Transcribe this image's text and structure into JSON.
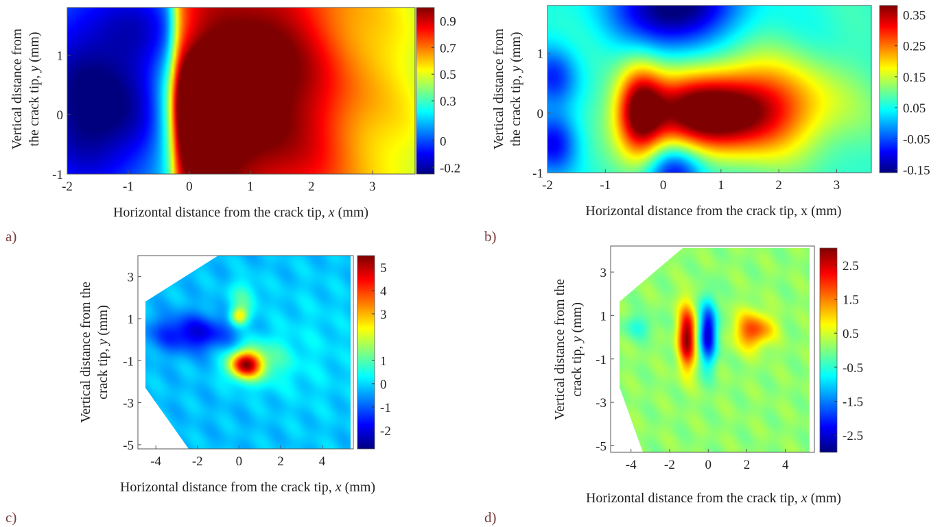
{
  "colormap": [
    "#00007f",
    "#0000ff",
    "#007fff",
    "#00ffff",
    "#7fff7f",
    "#ffff00",
    "#ff7f00",
    "#ff0000",
    "#7f0000"
  ],
  "chart_data": [
    {
      "panel": "a)",
      "type": "heatmap",
      "xlabel_pre": "Horizontal distance from the crack tip, ",
      "xlabel_var": "x",
      "xlabel_post": " (mm)",
      "ylabel_line1": "Vertical distance from",
      "ylabel_line1_var": "",
      "ylabel_line1_post": "",
      "ylabel_line2_pre": "the crack tip, ",
      "ylabel_line2_var": "y",
      "ylabel_line2_post": " (mm)",
      "xlim": [
        -2,
        3.7
      ],
      "ylim": [
        -1,
        1.8
      ],
      "xticks": [
        -2,
        -1,
        0,
        1,
        2,
        3
      ],
      "yticks": [
        -1,
        0,
        1
      ],
      "colorbar_ticks": [
        "0.9",
        "0.7",
        "0.5",
        "0.3",
        "0",
        "-0.2"
      ],
      "colorbar_range": [
        -0.25,
        1.0
      ],
      "field": [
        {
          "x": -1.4,
          "y": 0.0,
          "amp": -0.45,
          "sx": 0.9,
          "sy": 0.9
        },
        {
          "x": -1.0,
          "y": 1.5,
          "amp": -0.25,
          "sx": 0.9,
          "sy": 0.6
        },
        {
          "x": 0.1,
          "y": 0.0,
          "amp": 0.65,
          "sx": 0.35,
          "sy": 0.7
        },
        {
          "x": 0.8,
          "y": 0.5,
          "amp": 0.25,
          "sx": 0.9,
          "sy": 1.2
        },
        {
          "x": 2.0,
          "y": 0.3,
          "amp": 0.15,
          "sx": 1.2,
          "sy": 1.5
        }
      ],
      "field_base": 0.35,
      "field_step": {
        "x0": -0.25,
        "width": 0.25,
        "left": -0.2,
        "right": 0.45
      }
    },
    {
      "panel": "b)",
      "type": "heatmap",
      "xlabel_pre": "Horizontal distance from the crack tip, x (mm)",
      "xlabel_var": "",
      "xlabel_post": "",
      "ylabel_line1": "Vertical distance from",
      "ylabel_line1_var": "",
      "ylabel_line1_post": "",
      "ylabel_line2_pre": "the crack tip, ",
      "ylabel_line2_var": "y",
      "ylabel_line2_post": " (mm)",
      "xlim": [
        -2,
        3.6
      ],
      "ylim": [
        -1,
        1.8
      ],
      "xticks": [
        -2,
        -1,
        0,
        1,
        2,
        3
      ],
      "yticks": [
        -1,
        0,
        1
      ],
      "colorbar_ticks": [
        "0.35",
        "0.25",
        "0.15",
        "0.05",
        "-0.05",
        "-0.15"
      ],
      "colorbar_range": [
        -0.16,
        0.38
      ],
      "field": [
        {
          "x": -0.4,
          "y": 0.0,
          "amp": 0.28,
          "sx": 0.28,
          "sy": 0.55
        },
        {
          "x": 0.7,
          "y": 0.0,
          "amp": 0.3,
          "sx": 0.8,
          "sy": 0.45
        },
        {
          "x": 1.8,
          "y": 0.1,
          "amp": 0.18,
          "sx": 1.0,
          "sy": 0.6
        },
        {
          "x": 0.2,
          "y": 1.8,
          "amp": -0.25,
          "sx": 0.7,
          "sy": 0.5
        },
        {
          "x": 0.2,
          "y": -1.0,
          "amp": -0.18,
          "sx": 0.35,
          "sy": 0.35
        },
        {
          "x": -1.9,
          "y": -0.5,
          "amp": -0.15,
          "sx": 0.3,
          "sy": 0.35
        },
        {
          "x": -1.9,
          "y": 0.6,
          "amp": -0.12,
          "sx": 0.3,
          "sy": 0.35
        }
      ],
      "field_base": 0.06,
      "field_step": null
    },
    {
      "panel": "c)",
      "type": "heatmap",
      "xlabel_pre": "Horizontal distance from the crack tip, ",
      "xlabel_var": "x",
      "xlabel_post": " (mm)",
      "ylabel_line1": "Vertical distance from the",
      "ylabel_line1_var": "",
      "ylabel_line1_post": "",
      "ylabel_line2_pre": "crack tip, ",
      "ylabel_line2_var": "y",
      "ylabel_line2_post": " (mm)",
      "xlim": [
        -4.5,
        5.5
      ],
      "ylim": [
        -5.2,
        4.0
      ],
      "xticks": [
        -4,
        -2,
        0,
        2,
        4
      ],
      "yticks": [
        -5,
        -3,
        -1,
        1,
        3
      ],
      "colorbar_ticks": [
        "5",
        "4",
        "3",
        "1",
        "0",
        "-1",
        "-2"
      ],
      "colorbar_range": [
        -2.8,
        5.5
      ],
      "field": [
        {
          "x": -2.2,
          "y": 0.3,
          "amp": -1.8,
          "sx": 1.4,
          "sy": 0.6
        },
        {
          "x": 0.3,
          "y": -1.2,
          "amp": 4.6,
          "sx": 0.55,
          "sy": 0.45
        },
        {
          "x": 1.0,
          "y": -1.0,
          "amp": 1.2,
          "sx": 1.0,
          "sy": 0.8
        },
        {
          "x": 0.0,
          "y": 1.1,
          "amp": 2.6,
          "sx": 0.3,
          "sy": 0.3
        },
        {
          "x": 0.2,
          "y": 2.0,
          "amp": 1.0,
          "sx": 0.5,
          "sy": 0.6
        },
        {
          "x": 3.5,
          "y": -0.5,
          "amp": 0.3,
          "sx": 1.5,
          "sy": 2.5
        }
      ],
      "field_base": -0.2,
      "field_step": null
    },
    {
      "panel": "d)",
      "type": "heatmap",
      "xlabel_pre": "Horizontal distance from the crack tip, ",
      "xlabel_var": "x",
      "xlabel_post": " (mm)",
      "ylabel_line1": "Vertical distance from the",
      "ylabel_line1_var": "",
      "ylabel_line1_post": "",
      "ylabel_line2_pre": "crack tip, ",
      "ylabel_line2_var": "y",
      "ylabel_line2_post": " (mm)",
      "xlim": [
        -4.7,
        5.5
      ],
      "ylim": [
        -5.3,
        4.2
      ],
      "xticks": [
        -4,
        -2,
        0,
        2,
        4
      ],
      "yticks": [
        -5,
        -3,
        -1,
        1,
        3
      ],
      "colorbar_ticks": [
        "2.5",
        "1.5",
        "0.5",
        "-0.5",
        "-1.5",
        "-2.5"
      ],
      "colorbar_range": [
        -3.0,
        3.0
      ],
      "field": [
        {
          "x": -1.1,
          "y": 0.0,
          "amp": 2.8,
          "sx": 0.32,
          "sy": 1.0
        },
        {
          "x": 0.0,
          "y": 0.2,
          "amp": -2.7,
          "sx": 0.32,
          "sy": 1.0
        },
        {
          "x": 2.2,
          "y": 0.3,
          "amp": 1.6,
          "sx": 0.6,
          "sy": 0.6
        },
        {
          "x": 3.0,
          "y": 0.4,
          "amp": 0.5,
          "sx": 0.5,
          "sy": 0.4
        },
        {
          "x": -3.6,
          "y": 0.5,
          "amp": -0.6,
          "sx": 0.6,
          "sy": 0.4
        }
      ],
      "field_base": 0.1,
      "field_step": null
    }
  ]
}
